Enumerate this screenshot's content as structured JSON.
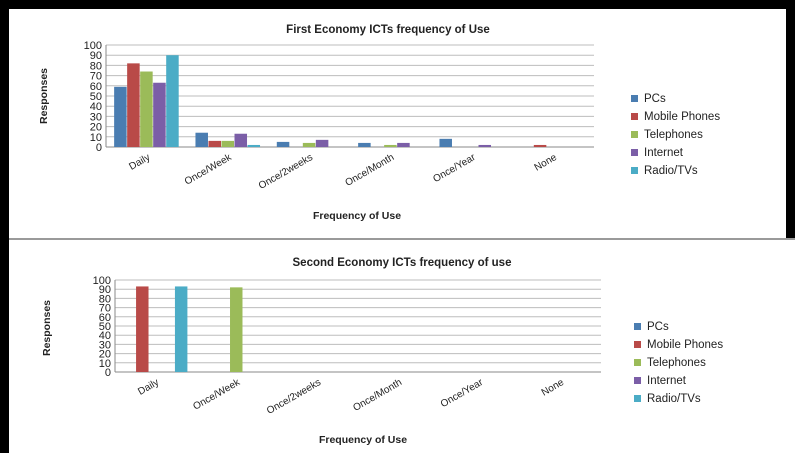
{
  "colors": {
    "PCs": "#4a7db1",
    "Mobile Phones": "#b94a48",
    "Telephones": "#9bbb59",
    "Internet": "#7b5ea7",
    "Radio/TVs": "#4bacc6"
  },
  "chart_data": [
    {
      "type": "bar",
      "title": "First Economy ICTs frequency of Use",
      "xlabel": "Frequency of Use",
      "ylabel": "Responses",
      "ylim": [
        0,
        100
      ],
      "yticks": [
        0,
        10,
        20,
        30,
        40,
        50,
        60,
        70,
        80,
        90,
        100
      ],
      "grid": true,
      "legend": "right",
      "categories": [
        "Daily",
        "Once/Week",
        "Once/2weeks",
        "Once/Month",
        "Once/Year",
        "None"
      ],
      "series": [
        {
          "name": "PCs",
          "values": [
            59,
            14,
            5,
            4,
            8,
            0
          ]
        },
        {
          "name": "Mobile Phones",
          "values": [
            82,
            6,
            0,
            0,
            0,
            2
          ]
        },
        {
          "name": "Telephones",
          "values": [
            74,
            6,
            4,
            2,
            0,
            0
          ]
        },
        {
          "name": "Internet",
          "values": [
            63,
            13,
            7,
            4,
            2,
            0
          ]
        },
        {
          "name": "Radio/TVs",
          "values": [
            90,
            2,
            0,
            0,
            0,
            0
          ]
        }
      ]
    },
    {
      "type": "bar",
      "title": "Second Economy ICTs frequency of use",
      "xlabel": "Frequency of Use",
      "ylabel": "Responses",
      "ylim": [
        0,
        100
      ],
      "yticks": [
        0,
        10,
        20,
        30,
        40,
        50,
        60,
        70,
        80,
        90,
        100
      ],
      "grid": true,
      "legend": "right",
      "categories": [
        "Daily",
        "Once/Week",
        "Once/2weeks",
        "Once/Month",
        "Once/Year",
        "None"
      ],
      "series": [
        {
          "name": "PCs",
          "values": [
            0,
            0,
            0,
            0,
            0,
            0
          ]
        },
        {
          "name": "Mobile Phones",
          "values": [
            93,
            0,
            0,
            0,
            0,
            0
          ]
        },
        {
          "name": "Telephones",
          "values": [
            0,
            92,
            0,
            0,
            0,
            0
          ]
        },
        {
          "name": "Internet",
          "values": [
            0,
            0,
            0,
            0,
            0,
            0
          ]
        },
        {
          "name": "Radio/TVs",
          "values": [
            93,
            0,
            0,
            0,
            0,
            0
          ]
        }
      ]
    }
  ]
}
